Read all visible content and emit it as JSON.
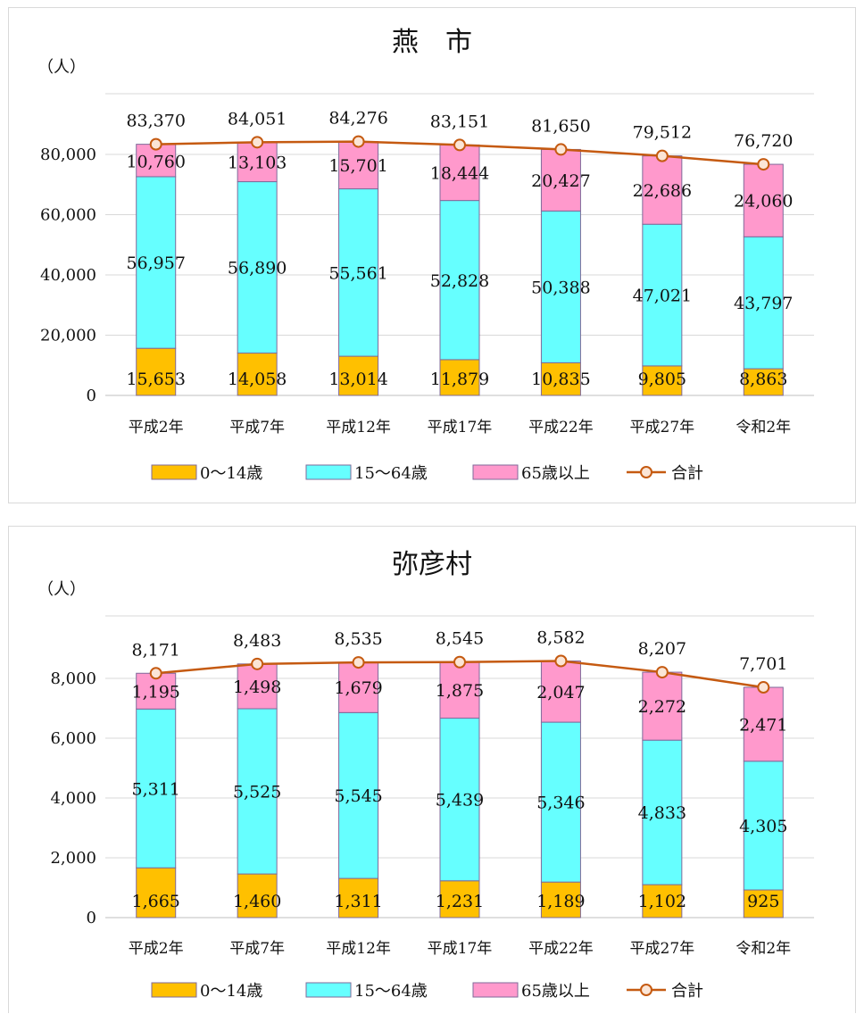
{
  "colors": {
    "age_0_14": "#ffc000",
    "age_15_64": "#66ffff",
    "age_65_plus": "#ff99cc",
    "total_line": "#c55a11",
    "total_marker_fill": "#fbe5d6",
    "grid": "#d9d9d9",
    "bar_outline": "#7f6a9a"
  },
  "chart_data": [
    {
      "type": "bar",
      "stacked": true,
      "title": "燕　市",
      "ylabel": "（人）",
      "ylim": [
        0,
        80000
      ],
      "y_ticks": [
        0,
        20000,
        40000,
        60000,
        80000
      ],
      "y_tick_labels": [
        "0",
        "20,000",
        "40,000",
        "60,000",
        "80,000"
      ],
      "grid": true,
      "legend_position": "bottom",
      "categories": [
        "平成2年",
        "平成7年",
        "平成12年",
        "平成17年",
        "平成22年",
        "平成27年",
        "令和2年"
      ],
      "series": [
        {
          "name": "0～14歳",
          "type": "bar",
          "values": [
            15653,
            14058,
            13014,
            11879,
            10835,
            9805,
            8863
          ],
          "labels": [
            "15,653",
            "14,058",
            "13,014",
            "11,879",
            "10,835",
            "9,805",
            "8,863"
          ]
        },
        {
          "name": "15～64歳",
          "type": "bar",
          "values": [
            56957,
            56890,
            55561,
            52828,
            50388,
            47021,
            43797
          ],
          "labels": [
            "56,957",
            "56,890",
            "55,561",
            "52,828",
            "50,388",
            "47,021",
            "43,797"
          ]
        },
        {
          "name": "65歳以上",
          "type": "bar",
          "values": [
            10760,
            13103,
            15701,
            18444,
            20427,
            22686,
            24060
          ],
          "labels": [
            "10,760",
            "13,103",
            "15,701",
            "18,444",
            "20,427",
            "22,686",
            "24,060"
          ]
        },
        {
          "name": "合計",
          "type": "line",
          "values": [
            83370,
            84051,
            84276,
            83151,
            81650,
            79512,
            76720
          ],
          "labels": [
            "83,370",
            "84,051",
            "84,276",
            "83,151",
            "81,650",
            "79,512",
            "76,720"
          ]
        }
      ]
    },
    {
      "type": "bar",
      "stacked": true,
      "title": "弥彦村",
      "ylabel": "（人）",
      "ylim": [
        0,
        8000
      ],
      "y_ticks": [
        0,
        2000,
        4000,
        6000,
        8000
      ],
      "y_tick_labels": [
        "0",
        "2,000",
        "4,000",
        "6,000",
        "8,000"
      ],
      "grid": true,
      "legend_position": "bottom",
      "categories": [
        "平成2年",
        "平成7年",
        "平成12年",
        "平成17年",
        "平成22年",
        "平成27年",
        "令和2年"
      ],
      "series": [
        {
          "name": "0～14歳",
          "type": "bar",
          "values": [
            1665,
            1460,
            1311,
            1231,
            1189,
            1102,
            925
          ],
          "labels": [
            "1,665",
            "1,460",
            "1,311",
            "1,231",
            "1,189",
            "1,102",
            "925"
          ]
        },
        {
          "name": "15～64歳",
          "type": "bar",
          "values": [
            5311,
            5525,
            5545,
            5439,
            5346,
            4833,
            4305
          ],
          "labels": [
            "5,311",
            "5,525",
            "5,545",
            "5,439",
            "5,346",
            "4,833",
            "4,305"
          ]
        },
        {
          "name": "65歳以上",
          "type": "bar",
          "values": [
            1195,
            1498,
            1679,
            1875,
            2047,
            2272,
            2471
          ],
          "labels": [
            "1,195",
            "1,498",
            "1,679",
            "1,875",
            "2,047",
            "2,272",
            "2,471"
          ]
        },
        {
          "name": "合計",
          "type": "line",
          "values": [
            8171,
            8483,
            8535,
            8545,
            8582,
            8207,
            7701
          ],
          "labels": [
            "8,171",
            "8,483",
            "8,535",
            "8,545",
            "8,582",
            "8,207",
            "7,701"
          ]
        }
      ]
    }
  ]
}
